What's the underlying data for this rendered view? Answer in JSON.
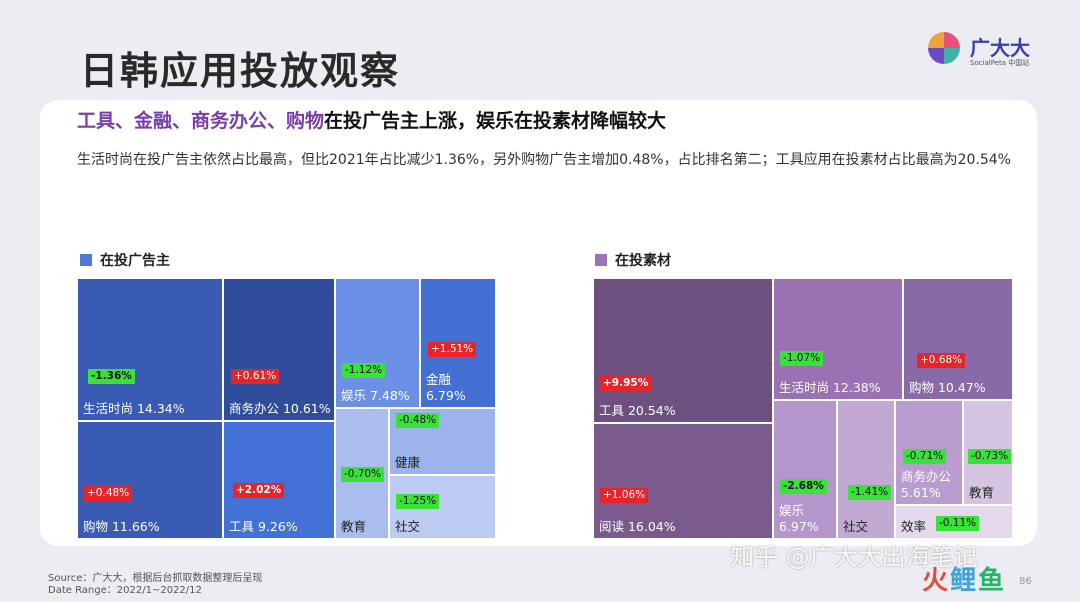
{
  "page": {
    "title": "日韩应用投放观察",
    "headline_highlight": "工具、金融、商务办公、购物",
    "headline_rest": "在投广告主上涨，娱乐在投素材降幅较大",
    "description": "生活时尚在投广告主依然占比最高，但比2021年占比减少1.36%，另外购物广告主增加0.48%，占比排名第二；工具应用在投素材占比最高为20.54%",
    "source_line1": "Source：广大大，根据后台抓取数据整理后呈现",
    "source_line2": "Date Range：2022/1~2022/12",
    "page_number": "86"
  },
  "logo": {
    "brand": "广大大",
    "sub": "SocialPeta 中国站",
    "colors": [
      "#e8527a",
      "#3fb3a8",
      "#6a4bc4",
      "#f0a23a"
    ]
  },
  "watermark": {
    "text": "知乎 @广大大出海笔记",
    "logo_part1": "火",
    "logo_part2": "鲤",
    "logo_part3": "鱼"
  },
  "colors": {
    "positive_change": "#e8242b",
    "negative_change": "#39e239",
    "advertiser_legend": "#4f78d8",
    "creative_legend": "#9b74b8"
  },
  "chart_data": [
    {
      "type": "treemap",
      "title": "在投广告主",
      "cells": [
        {
          "name": "生活时尚",
          "value": 14.34,
          "label": "生活时尚 14.34%",
          "change": "-1.36%",
          "direction": "down",
          "fill": "#3a5bb4",
          "text": "#ffffff",
          "bold": true
        },
        {
          "name": "购物",
          "value": 11.66,
          "label": "购物 11.66%",
          "change": "+0.48%",
          "direction": "up",
          "fill": "#3a5bb4",
          "text": "#ffffff",
          "bold": false
        },
        {
          "name": "商务办公",
          "value": 10.61,
          "label": "商务办公 10.61%",
          "change": "+0.61%",
          "direction": "up",
          "fill": "#2f4d9a",
          "text": "#ffffff",
          "bold": false
        },
        {
          "name": "工具",
          "value": 9.26,
          "label": "工具 9.26%",
          "change": "+2.02%",
          "direction": "up",
          "fill": "#4272d6",
          "text": "#ffffff",
          "bold": true
        },
        {
          "name": "娱乐",
          "value": 7.48,
          "label": "娱乐 7.48%",
          "change": "-1.12%",
          "direction": "down",
          "fill": "#6b90e6",
          "text": "#ffffff",
          "bold": false
        },
        {
          "name": "金融",
          "value": 6.79,
          "label": "金融\n6.79%",
          "change": "+1.51%",
          "direction": "up",
          "fill": "#4470d4",
          "text": "#ffffff",
          "bold": false
        },
        {
          "name": "教育",
          "value": null,
          "label": "教育",
          "change": "-0.70%",
          "direction": "down",
          "fill": "#a9bdee",
          "text": "#222222",
          "bold": false
        },
        {
          "name": "健康",
          "value": null,
          "label": "健康",
          "change": "-0.48%",
          "direction": "down",
          "fill": "#9db4ea",
          "text": "#222222",
          "bold": false
        },
        {
          "name": "社交",
          "value": null,
          "label": "社交",
          "change": "-1.25%",
          "direction": "down",
          "fill": "#bccbf1",
          "text": "#222222",
          "bold": false
        }
      ]
    },
    {
      "type": "treemap",
      "title": "在投素材",
      "cells": [
        {
          "name": "工具",
          "value": 20.54,
          "label": "工具 20.54%",
          "change": "+9.95%",
          "direction": "up",
          "fill": "#6d4f80",
          "text": "#ffffff",
          "bold": true
        },
        {
          "name": "阅读",
          "value": 16.04,
          "label": "阅读 16.04%",
          "change": "+1.06%",
          "direction": "up",
          "fill": "#7a5a8c",
          "text": "#ffffff",
          "bold": false
        },
        {
          "name": "生活时尚",
          "value": 12.38,
          "label": "生活时尚 12.38%",
          "change": "-1.07%",
          "direction": "down",
          "fill": "#9a72b4",
          "text": "#ffffff",
          "bold": false
        },
        {
          "name": "购物",
          "value": 10.47,
          "label": "购物 10.47%",
          "change": "+0.68%",
          "direction": "up",
          "fill": "#8a6aa6",
          "text": "#ffffff",
          "bold": false
        },
        {
          "name": "娱乐",
          "value": 6.97,
          "label": "娱乐\n6.97%",
          "change": "-2.68%",
          "direction": "down",
          "fill": "#b596cc",
          "text": "#ffffff",
          "bold": true
        },
        {
          "name": "社交",
          "value": null,
          "label": "社交",
          "change": "-1.41%",
          "direction": "down",
          "fill": "#c2a9d4",
          "text": "#222222",
          "bold": false
        },
        {
          "name": "商务办公",
          "value": 5.61,
          "label": "商务办公\n5.61%",
          "change": "-0.71%",
          "direction": "down",
          "fill": "#b99dd0",
          "text": "#ffffff",
          "bold": false
        },
        {
          "name": "教育",
          "value": null,
          "label": "教育",
          "change": "-0.73%",
          "direction": "down",
          "fill": "#d5c4e2",
          "text": "#222222",
          "bold": false
        },
        {
          "name": "效率",
          "value": null,
          "label": "效率",
          "change": "-0.11%",
          "direction": "down",
          "fill": "#e3d8ec",
          "text": "#222222",
          "bold": false
        }
      ]
    }
  ]
}
